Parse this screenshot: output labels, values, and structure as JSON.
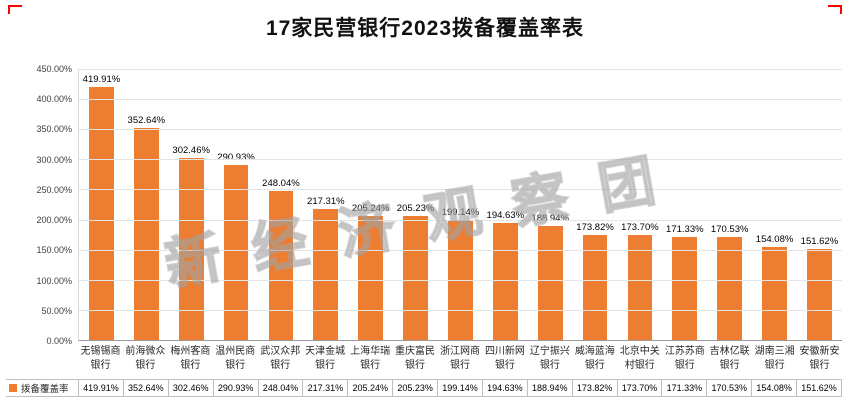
{
  "page": {
    "title": "17家民营银行2023拨备覆盖率表"
  },
  "watermark": "新经济观察团",
  "legend": {
    "label": "拨备覆盖率",
    "color": "#ED7D31"
  },
  "chart_data": {
    "type": "bar",
    "title": "17家民营银行2023拨备覆盖率表",
    "series_name": "拨备覆盖率",
    "categories": [
      "无锡锡商银行",
      "前海微众银行",
      "梅州客商银行",
      "温州民商银行",
      "武汉众邦银行",
      "天津金城银行",
      "上海华瑞银行",
      "重庆富民银行",
      "浙江网商银行",
      "四川新网银行",
      "辽宁振兴银行",
      "威海蓝海银行",
      "北京中关村银行",
      "江苏苏商银行",
      "吉林亿联银行",
      "湖南三湘银行",
      "安徽新安银行"
    ],
    "values": [
      419.91,
      352.64,
      302.46,
      290.93,
      248.04,
      217.31,
      205.24,
      205.23,
      199.14,
      194.63,
      188.94,
      173.82,
      173.7,
      171.33,
      170.53,
      154.08,
      151.62
    ],
    "value_label_suffix": "%",
    "xlabel": "",
    "ylabel": "",
    "ylim": [
      0,
      450
    ],
    "y_ticks": [
      "450.00%",
      "400.00%",
      "350.00%",
      "300.00%",
      "250.00%",
      "200.00%",
      "150.00%",
      "100.00%",
      "50.00%",
      "0.00%"
    ],
    "bar_color": "#ED7D31",
    "grid": true,
    "legend_position": "bottom-left",
    "data_table": true
  }
}
